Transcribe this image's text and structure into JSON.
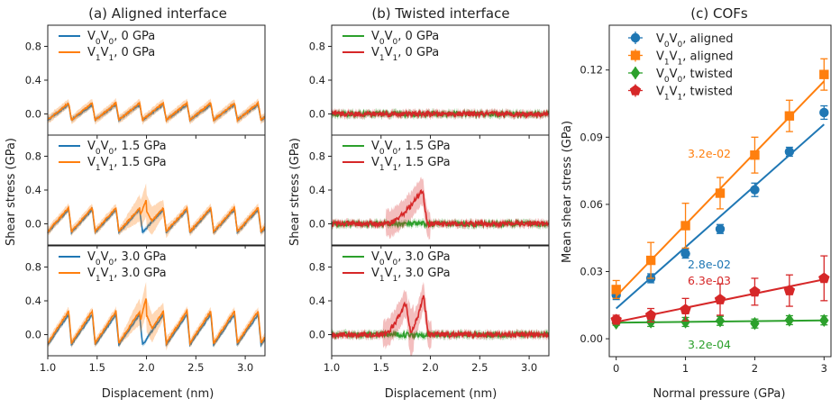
{
  "figure": {
    "titles": [
      "(a) Aligned interface",
      "(b) Twisted interface",
      "(c) COFs"
    ],
    "xlabel_disp": "Displacement (nm)",
    "ylabel_shear": "Shear stress (GPa)",
    "ylabel_mean": "Mean shear stress (GPa)",
    "xlabel_pressure": "Normal pressure (GPa)"
  },
  "chart_data": [
    {
      "type": "line",
      "title": "(a) Aligned interface",
      "xlabel": "Displacement (nm)",
      "ylabel": "Shear stress (GPa)",
      "xlim": [
        1.0,
        3.2
      ],
      "ylim": [
        -0.25,
        1.05
      ],
      "xticks": [
        "1.0",
        "1.5",
        "2.0",
        "2.5",
        "3.0"
      ],
      "yticks": [
        "0.0",
        "0.4",
        "0.8"
      ],
      "colors": {
        "V0V0": "#1f77b4",
        "V1V1": "#ff7f0e"
      },
      "panels": [
        {
          "pressure": "0 GPa",
          "legend": [
            {
              "base": "V",
              "sub": "0",
              "base2": "V",
              "sub2": "0",
              "suffix": ", 0 GPa"
            },
            {
              "base": "V",
              "sub": "1",
              "base2": "V",
              "sub2": "1",
              "suffix": ", 0 GPa"
            }
          ],
          "series": {
            "V0V0": {
              "period": 0.24,
              "amplitude": 0.18,
              "offset": -0.07
            },
            "V1V1": {
              "period": 0.24,
              "amplitude": 0.2,
              "offset": -0.07
            }
          }
        },
        {
          "pressure": "1.5 GPa",
          "legend": [
            {
              "base": "V",
              "sub": "0",
              "base2": "V",
              "sub2": "0",
              "suffix": ", 1.5 GPa"
            },
            {
              "base": "V",
              "sub": "1",
              "base2": "V",
              "sub2": "1",
              "suffix": ", 1.5 GPa"
            }
          ],
          "series": {
            "V0V0": {
              "period": 0.24,
              "amplitude": 0.27,
              "offset": -0.1
            },
            "V1V1": {
              "period": 0.24,
              "amplitude": 0.28,
              "offset": -0.09,
              "peak_x": 2.0,
              "peak_y": 0.3
            }
          }
        },
        {
          "pressure": "3.0 GPa",
          "legend": [
            {
              "base": "V",
              "sub": "0",
              "base2": "V",
              "sub2": "0",
              "suffix": ", 3.0 GPa"
            },
            {
              "base": "V",
              "sub": "1",
              "base2": "V",
              "sub2": "1",
              "suffix": ", 3.0 GPa"
            }
          ],
          "series": {
            "V0V0": {
              "period": 0.24,
              "amplitude": 0.36,
              "offset": -0.12
            },
            "V1V1": {
              "period": 0.24,
              "amplitude": 0.38,
              "offset": -0.1,
              "peak_x": 2.0,
              "peak_y": 0.45
            }
          }
        }
      ]
    },
    {
      "type": "line",
      "title": "(b) Twisted interface",
      "xlabel": "Displacement (nm)",
      "ylabel": "Shear stress (GPa)",
      "xlim": [
        1.0,
        3.2
      ],
      "ylim": [
        -0.25,
        1.05
      ],
      "xticks": [
        "1.0",
        "1.5",
        "2.0",
        "2.5",
        "3.0"
      ],
      "yticks": [
        "0.0",
        "0.4",
        "0.8"
      ],
      "colors": {
        "V0V0": "#2ca02c",
        "V1V1": "#d62728"
      },
      "panels": [
        {
          "pressure": "0 GPa",
          "legend": [
            {
              "base": "V",
              "sub": "0",
              "base2": "V",
              "sub2": "0",
              "suffix": ", 0 GPa"
            },
            {
              "base": "V",
              "sub": "1",
              "base2": "V",
              "sub2": "1",
              "suffix": ", 0 GPa"
            }
          ],
          "series": {
            "V0V0": {
              "noise": 0.03
            },
            "V1V1": {
              "noise": 0.03
            }
          }
        },
        {
          "pressure": "1.5 GPa",
          "legend": [
            {
              "base": "V",
              "sub": "0",
              "base2": "V",
              "sub2": "0",
              "suffix": ", 1.5 GPa"
            },
            {
              "base": "V",
              "sub": "1",
              "base2": "V",
              "sub2": "1",
              "suffix": ", 1.5 GPa"
            }
          ],
          "series": {
            "V0V0": {
              "noise": 0.03
            },
            "V1V1": {
              "noise": 0.03,
              "peaks": [
                {
                  "start": 1.55,
                  "x": 1.92,
                  "y": 0.4
                }
              ]
            }
          }
        },
        {
          "pressure": "3.0 GPa",
          "legend": [
            {
              "base": "V",
              "sub": "0",
              "base2": "V",
              "sub2": "0",
              "suffix": ", 3.0 GPa"
            },
            {
              "base": "V",
              "sub": "1",
              "base2": "V",
              "sub2": "1",
              "suffix": ", 3.0 GPa"
            }
          ],
          "series": {
            "V0V0": {
              "noise": 0.03
            },
            "V1V1": {
              "noise": 0.03,
              "peaks": [
                {
                  "start": 1.52,
                  "x": 1.75,
                  "y": 0.38
                },
                {
                  "start": 1.78,
                  "x": 1.93,
                  "y": 0.48
                }
              ]
            }
          }
        }
      ]
    },
    {
      "type": "scatter",
      "title": "(c) COFs",
      "xlabel": "Normal pressure (GPa)",
      "ylabel": "Mean shear stress (GPa)",
      "xlim": [
        -0.1,
        3.1
      ],
      "ylim": [
        -0.008,
        0.14
      ],
      "xticks": [
        "0",
        "1",
        "2",
        "3"
      ],
      "yticks": [
        "0.00",
        "0.03",
        "0.06",
        "0.09",
        "0.12"
      ],
      "x": [
        0,
        0.5,
        1,
        1.5,
        2,
        2.5,
        3
      ],
      "series": [
        {
          "key": "V0V0_aligned",
          "legend_sub": [
            "0",
            "0"
          ],
          "legend_suffix": ", aligned",
          "color": "#1f77b4",
          "marker": "circle",
          "values": [
            0.0195,
            0.027,
            0.038,
            0.049,
            0.0665,
            0.0835,
            0.101
          ],
          "errors": [
            0.002,
            0.002,
            0.002,
            0.002,
            0.003,
            0.002,
            0.003
          ],
          "fit": [
            0.0135,
            0.0957
          ],
          "cof_label": "2.8e-02"
        },
        {
          "key": "V1V1_aligned",
          "legend_sub": [
            "1",
            "1"
          ],
          "legend_suffix": ", aligned",
          "color": "#ff7f0e",
          "marker": "square",
          "values": [
            0.022,
            0.035,
            0.0505,
            0.065,
            0.082,
            0.0995,
            0.118
          ],
          "errors": [
            0.004,
            0.008,
            0.01,
            0.007,
            0.008,
            0.007,
            0.007
          ],
          "fit": [
            0.019,
            0.115
          ],
          "cof_label": "3.2e-02"
        },
        {
          "key": "V0V0_twisted",
          "legend_sub": [
            "0",
            "0"
          ],
          "legend_suffix": ", twisted",
          "color": "#2ca02c",
          "marker": "diamond",
          "values": [
            0.007,
            0.0075,
            0.0075,
            0.008,
            0.0068,
            0.0083,
            0.0082
          ],
          "errors": [
            0.001,
            0.002,
            0.002,
            0.002,
            0.002,
            0.002,
            0.002
          ],
          "fit": [
            0.0072,
            0.0082
          ],
          "cof_label": "3.2e-04"
        },
        {
          "key": "V1V1_twisted",
          "legend_sub": [
            "1",
            "1"
          ],
          "legend_suffix": ", twisted",
          "color": "#d62728",
          "marker": "pentagon",
          "values": [
            0.0085,
            0.0105,
            0.013,
            0.0175,
            0.021,
            0.0215,
            0.027
          ],
          "errors": [
            0.002,
            0.003,
            0.005,
            0.007,
            0.006,
            0.007,
            0.01
          ],
          "fit": [
            0.0075,
            0.0265
          ],
          "cof_label": "6.3e-03"
        }
      ]
    }
  ]
}
